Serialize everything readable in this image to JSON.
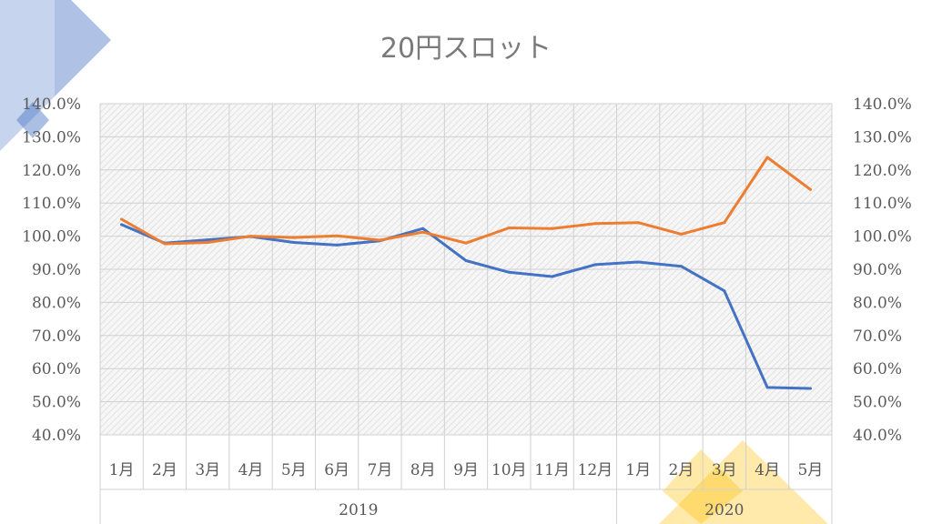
{
  "chart_data": {
    "type": "line",
    "title": "20円スロット",
    "categories": [
      "1月",
      "2月",
      "3月",
      "4月",
      "5月",
      "6月",
      "7月",
      "8月",
      "9月",
      "10月",
      "11月",
      "12月",
      "1月",
      "2月",
      "3月",
      "4月",
      "5月"
    ],
    "category_groups": [
      {
        "label": "2019",
        "count": 12
      },
      {
        "label": "2020",
        "count": 5
      }
    ],
    "y_tick_labels": [
      "40.0%",
      "50.0%",
      "60.0%",
      "70.0%",
      "80.0%",
      "90.0%",
      "100.0%",
      "110.0%",
      "120.0%",
      "130.0%",
      "140.0%"
    ],
    "ylim": [
      40,
      140
    ],
    "y2lim": [
      40,
      140
    ],
    "grid": true,
    "legend": "none",
    "series": [
      {
        "color": "#4472c4",
        "values": [
          103.5,
          97.9,
          98.9,
          99.9,
          98.1,
          97.3,
          98.6,
          102.3,
          92.6,
          89.1,
          87.8,
          91.4,
          92.2,
          90.9,
          83.5,
          54.3,
          54.0
        ]
      },
      {
        "color": "#ed7d31",
        "values": [
          105.1,
          97.7,
          98.1,
          100.0,
          99.6,
          100.1,
          98.8,
          101.2,
          97.9,
          102.5,
          102.3,
          103.8,
          104.1,
          100.6,
          104.1,
          123.8,
          114.1
        ]
      }
    ]
  }
}
